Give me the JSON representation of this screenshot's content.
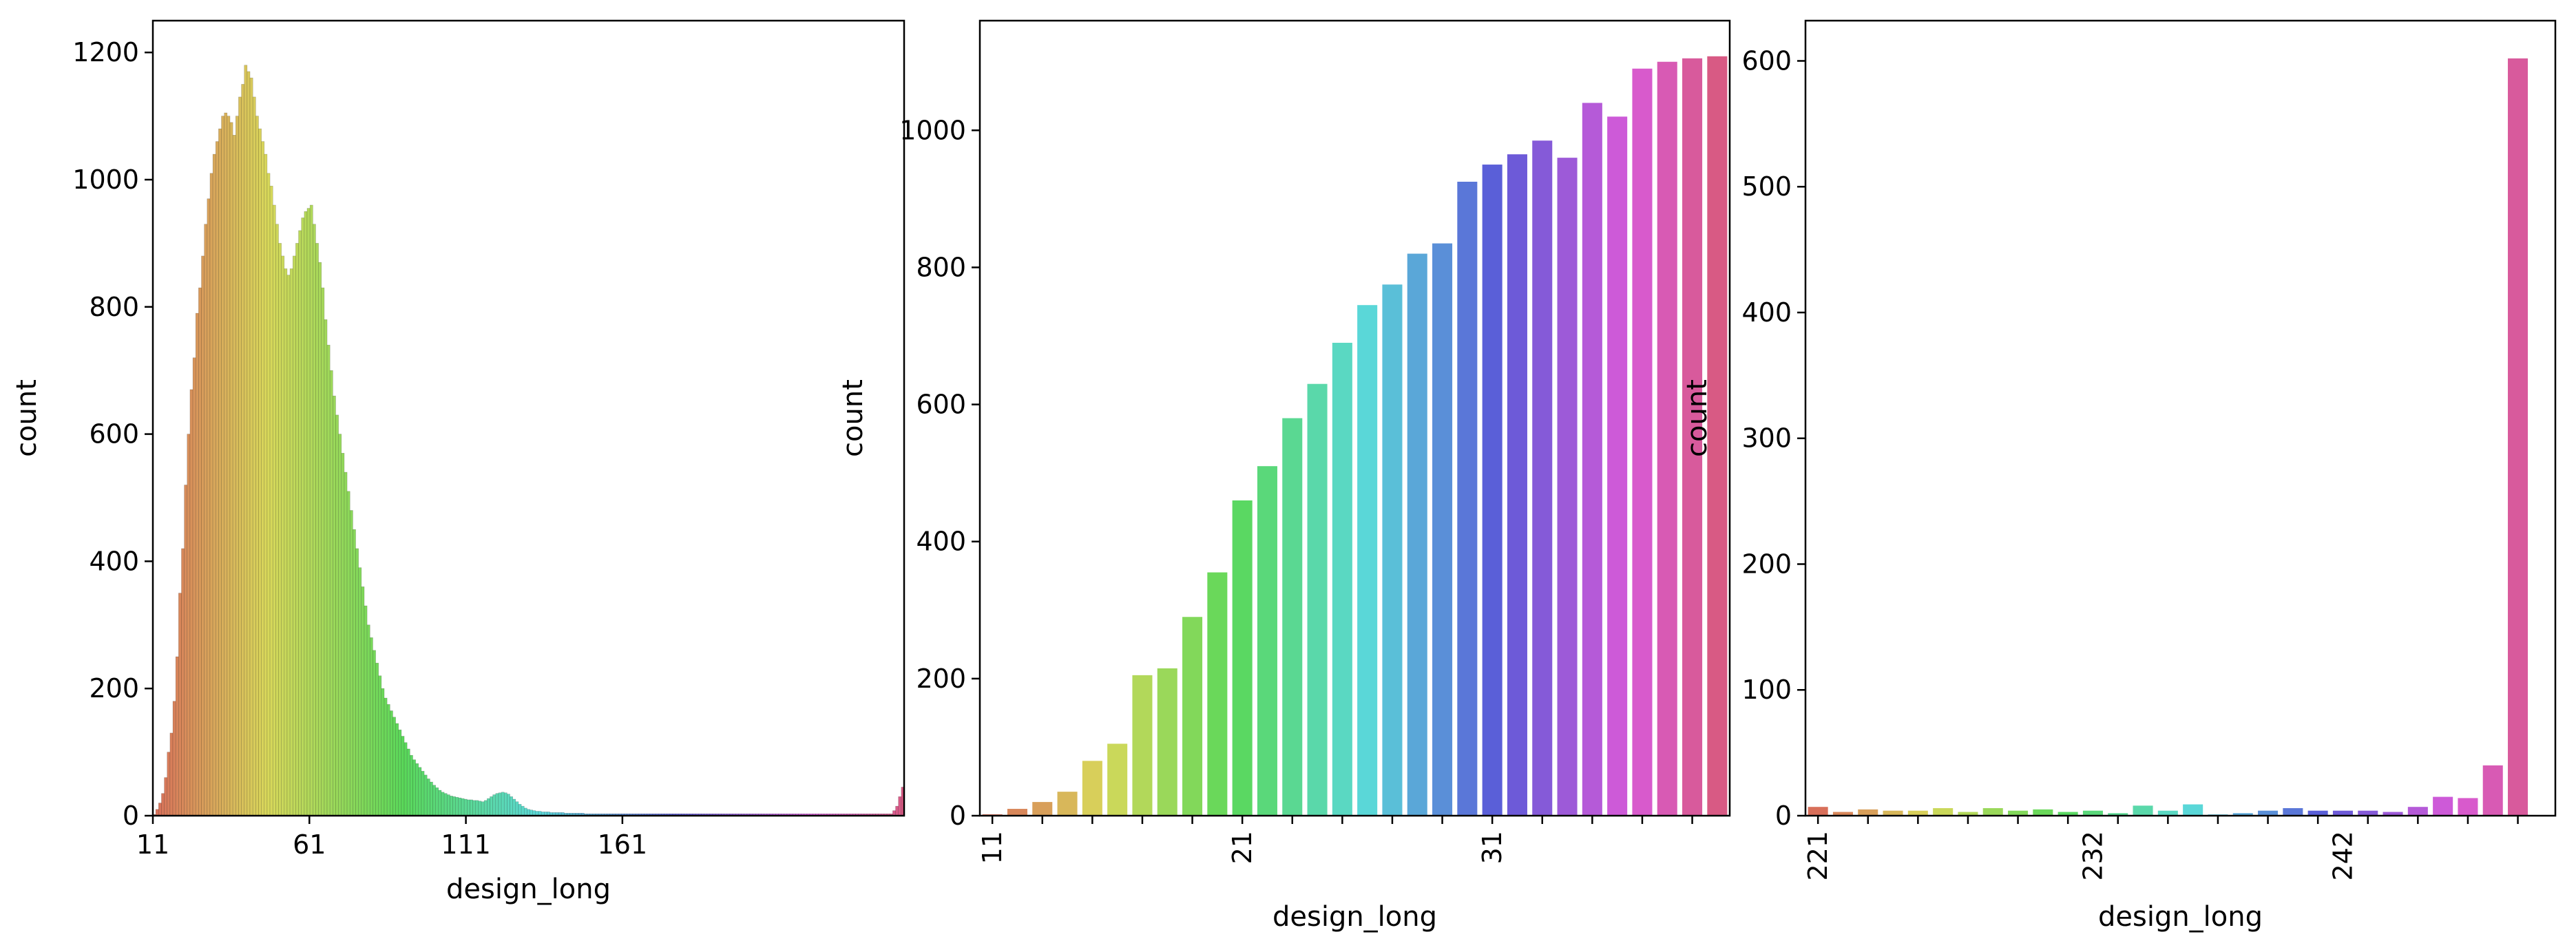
{
  "chart_data": [
    {
      "type": "bar",
      "xlabel": "design_long",
      "ylabel": "count",
      "ylim": [
        0,
        1250
      ],
      "yticks": [
        0,
        200,
        400,
        600,
        800,
        1000,
        1200
      ],
      "x_start": 11,
      "x_end": 250,
      "xtick_labels": [
        "11",
        "61",
        "111",
        "161"
      ],
      "xtick_rotation": 0,
      "grid": false,
      "values": [
        2,
        10,
        20,
        35,
        60,
        100,
        130,
        180,
        250,
        350,
        420,
        520,
        600,
        670,
        720,
        790,
        830,
        880,
        930,
        970,
        1010,
        1040,
        1060,
        1080,
        1100,
        1105,
        1100,
        1090,
        1070,
        1100,
        1130,
        1150,
        1180,
        1170,
        1160,
        1130,
        1100,
        1080,
        1060,
        1040,
        1010,
        990,
        960,
        930,
        900,
        880,
        860,
        850,
        860,
        880,
        900,
        920,
        940,
        950,
        955,
        960,
        930,
        900,
        870,
        830,
        780,
        740,
        700,
        660,
        630,
        600,
        570,
        540,
        510,
        480,
        450,
        420,
        390,
        360,
        330,
        300,
        280,
        260,
        240,
        220,
        200,
        185,
        175,
        165,
        155,
        145,
        135,
        125,
        115,
        105,
        95,
        88,
        82,
        76,
        70,
        64,
        58,
        53,
        48,
        44,
        40,
        37,
        35,
        33,
        31,
        30,
        29,
        28,
        27,
        26,
        25,
        25,
        24,
        24,
        23,
        22,
        24,
        27,
        30,
        33,
        35,
        36,
        37,
        36,
        34,
        30,
        26,
        22,
        18,
        15,
        12,
        10,
        9,
        8,
        7,
        7,
        6,
        6,
        6,
        5,
        5,
        5,
        5,
        5,
        4,
        4,
        4,
        4,
        4,
        4,
        4,
        3,
        3,
        3,
        3,
        3,
        3,
        3,
        3,
        3,
        3,
        3,
        3,
        3,
        3,
        3,
        3,
        3,
        3,
        3,
        3,
        3,
        3,
        3,
        3,
        3,
        3,
        3,
        3,
        3,
        3,
        3,
        3,
        3,
        3,
        3,
        3,
        3,
        3,
        3,
        3,
        3,
        3,
        3,
        3,
        3,
        3,
        3,
        3,
        3,
        3,
        3,
        3,
        3,
        3,
        3,
        3,
        3,
        3,
        3,
        3,
        3,
        3,
        3,
        3,
        3,
        3,
        3,
        3,
        3,
        3,
        3,
        3,
        3,
        3,
        3,
        3,
        3,
        3,
        3,
        3,
        3,
        3,
        3,
        3,
        3,
        3,
        3,
        3,
        3,
        3,
        3,
        3,
        3,
        3,
        3,
        3,
        3,
        3,
        3,
        3,
        3,
        3,
        3,
        3,
        3,
        3,
        3,
        3,
        8,
        15,
        30,
        45
      ]
    },
    {
      "type": "bar",
      "xlabel": "design_long",
      "ylabel": "count",
      "ylim": [
        0,
        1160
      ],
      "yticks": [
        0,
        200,
        400,
        600,
        800,
        1000
      ],
      "categories": [
        "11",
        "12",
        "13",
        "14",
        "15",
        "16",
        "17",
        "18",
        "19",
        "20",
        "21",
        "22",
        "23",
        "24",
        "25",
        "26",
        "27",
        "28",
        "29",
        "30",
        "31",
        "32",
        "33",
        "34",
        "35",
        "36",
        "37",
        "38",
        "39",
        "40"
      ],
      "xtick_labels": [
        "11",
        "21",
        "31"
      ],
      "xtick_rotation": 90,
      "grid": false,
      "values": [
        2,
        10,
        20,
        35,
        80,
        105,
        205,
        215,
        290,
        355,
        460,
        510,
        580,
        630,
        690,
        745,
        775,
        820,
        835,
        925,
        950,
        965,
        985,
        960,
        1040,
        1020,
        1090,
        1100,
        1105,
        1108
      ]
    },
    {
      "type": "bar",
      "xlabel": "design_long",
      "ylabel": "count",
      "ylim": [
        0,
        632
      ],
      "yticks": [
        0,
        100,
        200,
        300,
        400,
        500,
        600
      ],
      "categories": [
        "221",
        "222",
        "223",
        "224",
        "225",
        "226",
        "227",
        "228",
        "229",
        "230",
        "231",
        "232",
        "233",
        "234",
        "235",
        "236",
        "237",
        "238",
        "239",
        "240",
        "241",
        "242",
        "243",
        "244",
        "245",
        "246",
        "247",
        "248",
        "249",
        "250"
      ],
      "xtick_labels": [
        "221",
        "232",
        "242"
      ],
      "xtick_rotation": 90,
      "grid": false,
      "values": [
        7,
        3,
        5,
        4,
        4,
        6,
        3,
        6,
        4,
        5,
        3,
        4,
        2,
        8,
        4,
        9,
        1,
        2,
        4,
        6,
        4,
        4,
        4,
        3,
        7,
        15,
        14,
        40,
        602,
        0
      ]
    }
  ]
}
